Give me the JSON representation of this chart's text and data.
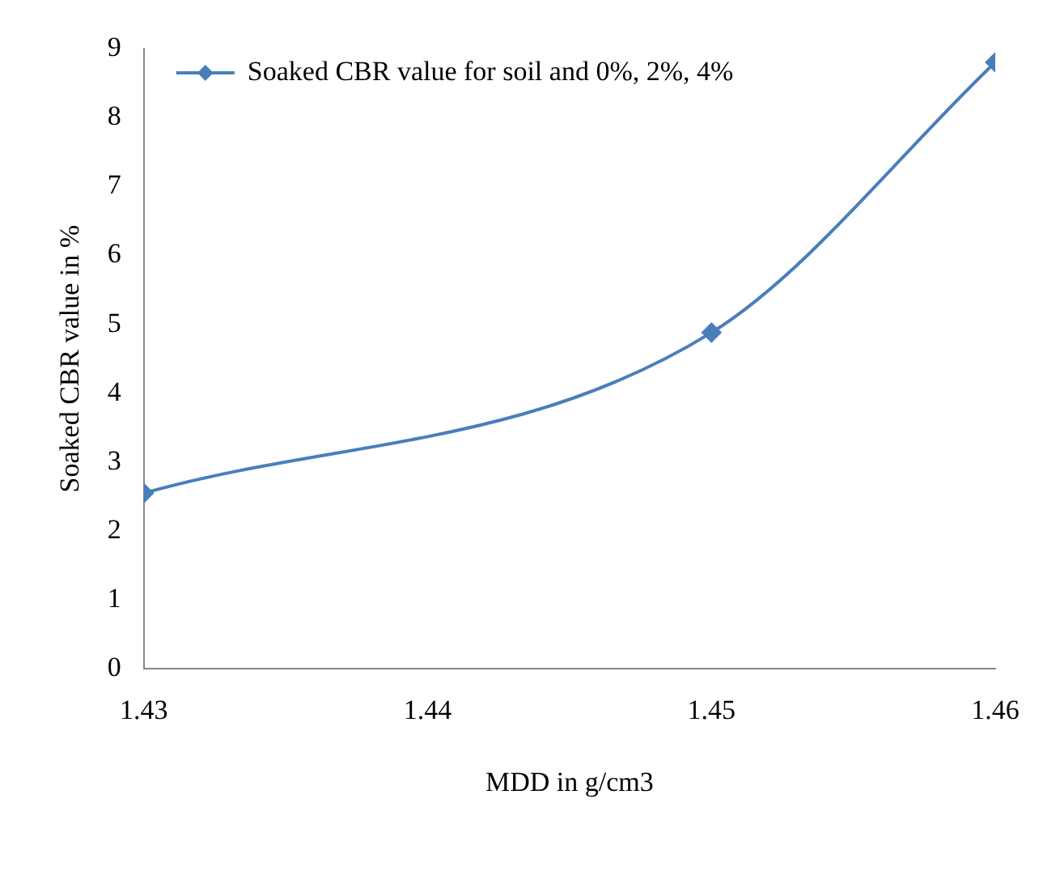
{
  "chart_data": {
    "type": "line",
    "xlabel": "MDD in g/cm3",
    "ylabel": "Soaked CBR value in %",
    "x": [
      1.43,
      1.45,
      1.46
    ],
    "series": [
      {
        "name": "Soaked CBR value for soil and 0%, 2%, 4%",
        "color": "#4a7ebb",
        "values": [
          2.55,
          4.88,
          8.8
        ]
      }
    ],
    "xlim": [
      1.43,
      1.46
    ],
    "xticks": [
      1.43,
      1.44,
      1.45,
      1.46
    ],
    "ylim": [
      0,
      9
    ],
    "yticks": [
      0,
      1,
      2,
      3,
      4,
      5,
      6,
      7,
      8,
      9
    ],
    "grid": false,
    "legend": "top left",
    "marker": "diamond",
    "line_style": "solid"
  }
}
